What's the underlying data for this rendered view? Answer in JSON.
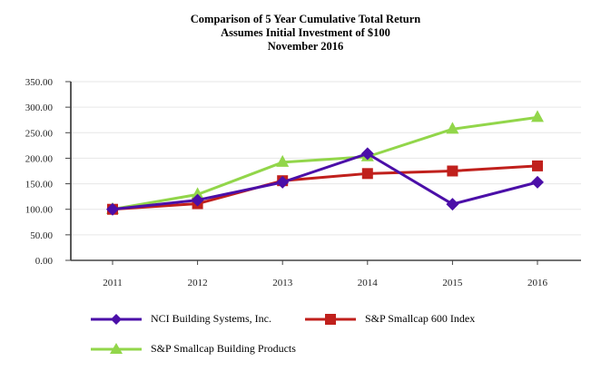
{
  "chart_data": {
    "type": "line",
    "title": "Comparison of 5 Year Cumulative Total Return",
    "subtitle_lines": [
      "Assumes Initial Investment of $100",
      "November 2016"
    ],
    "xlabel": "",
    "ylabel": "",
    "x": [
      "2011",
      "2012",
      "2013",
      "2014",
      "2015",
      "2016"
    ],
    "ylim": [
      0,
      350
    ],
    "yticks": [
      "0.00",
      "50.00",
      "100.00",
      "150.00",
      "200.00",
      "250.00",
      "300.00",
      "350.00"
    ],
    "ytick_values": [
      0,
      50,
      100,
      150,
      200,
      250,
      300,
      350
    ],
    "grid": true,
    "legend_placement": "bottom",
    "series": [
      {
        "name": "NCI Building Systems,  Inc.",
        "marker": "diamond",
        "color": "#4b0fa8",
        "values": [
          100,
          118,
          153,
          209,
          110,
          153
        ]
      },
      {
        "name": "S&P Smallcap 600 Index",
        "marker": "square",
        "color": "#c0201c",
        "values": [
          100,
          111,
          156,
          170,
          175,
          185
        ]
      },
      {
        "name": "S&P Smallcap Building Products",
        "marker": "triangle",
        "color": "#92d64a",
        "values": [
          100,
          129,
          192,
          203,
          257,
          280
        ]
      }
    ]
  }
}
